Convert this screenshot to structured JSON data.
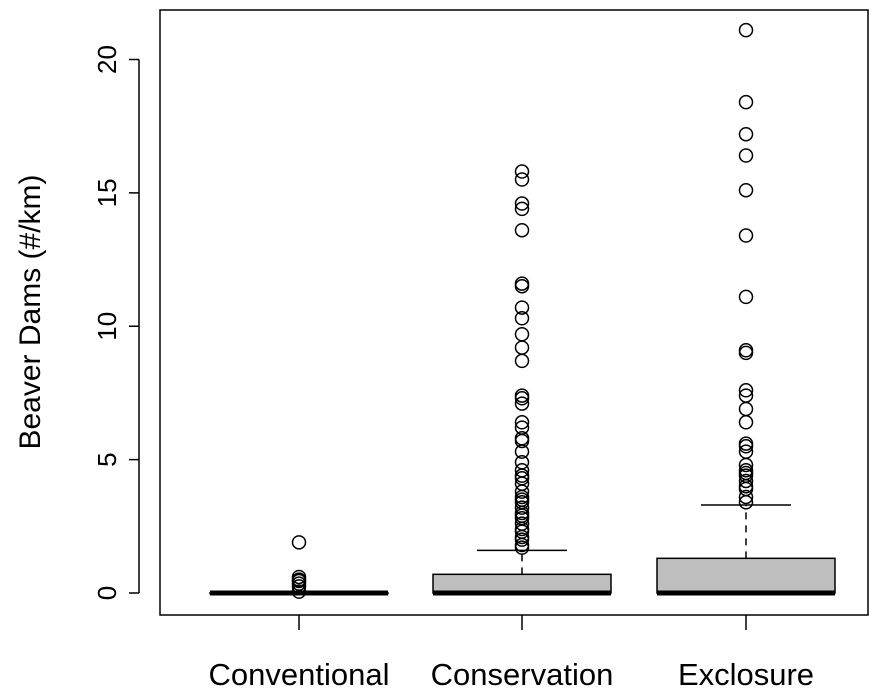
{
  "chart_data": {
    "type": "boxplot",
    "title": "",
    "xlabel": "",
    "ylabel": "Beaver Dams (#/km)",
    "ylim": [
      -0.8,
      22.0
    ],
    "y_ticks": [
      0,
      5,
      10,
      15,
      20
    ],
    "grid": false,
    "legend": "none",
    "categories": [
      "Conventional",
      "Conservation",
      "Exclosure"
    ],
    "boxes": [
      {
        "name": "Conventional",
        "min": 0,
        "q1": 0,
        "median": 0,
        "q3": 0,
        "max": 0,
        "outliers": [
          1.9,
          0.6,
          0.5,
          0.45,
          0.35,
          0.25,
          0.05
        ]
      },
      {
        "name": "Conservation",
        "min": 0,
        "q1": 0,
        "median": 0,
        "q3": 0.7,
        "max": 1.6,
        "outliers": [
          15.8,
          15.5,
          14.6,
          14.4,
          13.6,
          11.6,
          11.5,
          10.7,
          10.3,
          9.7,
          9.2,
          8.7,
          7.4,
          7.3,
          7.1,
          6.4,
          6.2,
          5.8,
          5.7,
          5.3,
          4.9,
          4.6,
          4.4,
          4.3,
          4.1,
          3.8,
          3.6,
          3.5,
          3.4,
          3.2,
          3.0,
          2.9,
          2.8,
          2.6,
          2.4,
          2.3,
          2.1,
          2.0,
          1.8,
          1.7
        ]
      },
      {
        "name": "Exclosure",
        "min": 0,
        "q1": 0,
        "median": 0,
        "q3": 1.3,
        "max": 3.3,
        "outliers": [
          21.1,
          18.4,
          17.2,
          16.4,
          15.1,
          13.4,
          11.1,
          9.1,
          9.0,
          7.6,
          7.4,
          6.9,
          6.4,
          5.6,
          5.5,
          5.3,
          4.8,
          4.6,
          4.5,
          4.4,
          4.2,
          4.0,
          3.9,
          3.6,
          3.4
        ]
      }
    ],
    "colors": {
      "box_fill": "#bebebe",
      "stroke": "#000000",
      "background": "#ffffff"
    }
  }
}
